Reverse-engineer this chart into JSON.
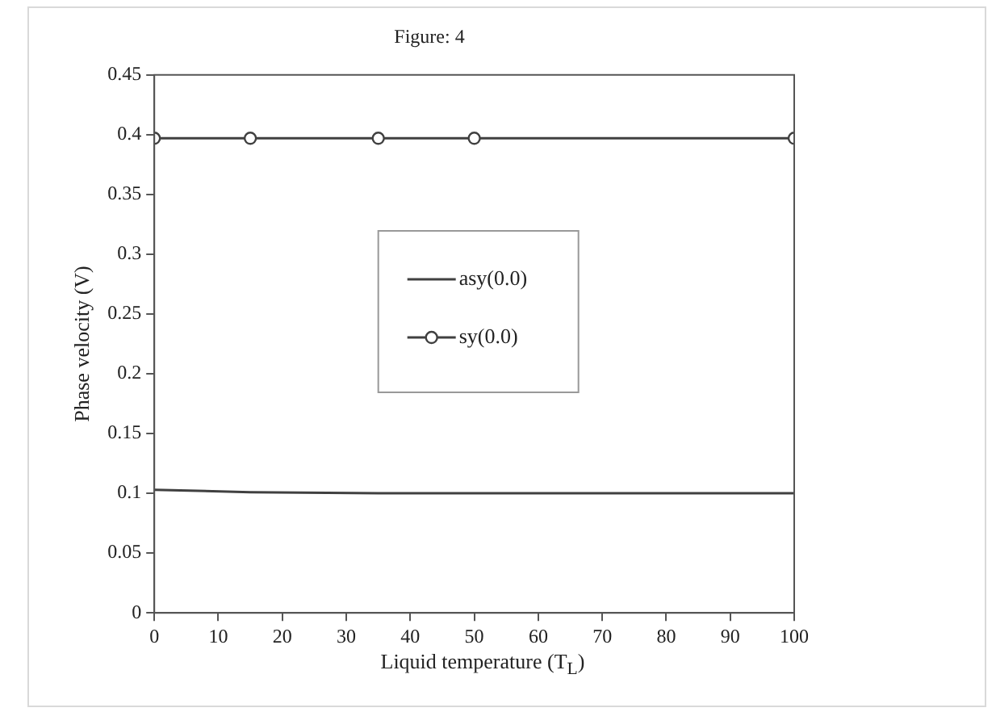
{
  "chart_data": {
    "type": "line",
    "title": "Figure: 4",
    "xlabel": "Liquid temperature (T$_{L}$)",
    "ylabel": "Phase velocity (V)",
    "x": [
      0,
      15,
      35,
      50,
      100
    ],
    "series": [
      {
        "name": "asy(0.0)",
        "color": "#404040",
        "values": [
          0.103,
          0.101,
          0.1,
          0.1,
          0.1
        ],
        "marker": "none"
      },
      {
        "name": "sy(0.0)",
        "color": "#404040",
        "values": [
          0.397,
          0.397,
          0.397,
          0.397,
          0.397
        ],
        "marker": "circle"
      }
    ],
    "xlim": [
      0,
      100
    ],
    "xticks": [
      0,
      10,
      20,
      30,
      40,
      50,
      60,
      70,
      80,
      90,
      100
    ],
    "ylim": [
      0,
      0.45
    ],
    "yticks": [
      0,
      0.05,
      0.1,
      0.15,
      0.2,
      0.25,
      0.3,
      0.35,
      0.4,
      0.45
    ],
    "grid": false,
    "legend": "center",
    "line_style": "solid"
  }
}
